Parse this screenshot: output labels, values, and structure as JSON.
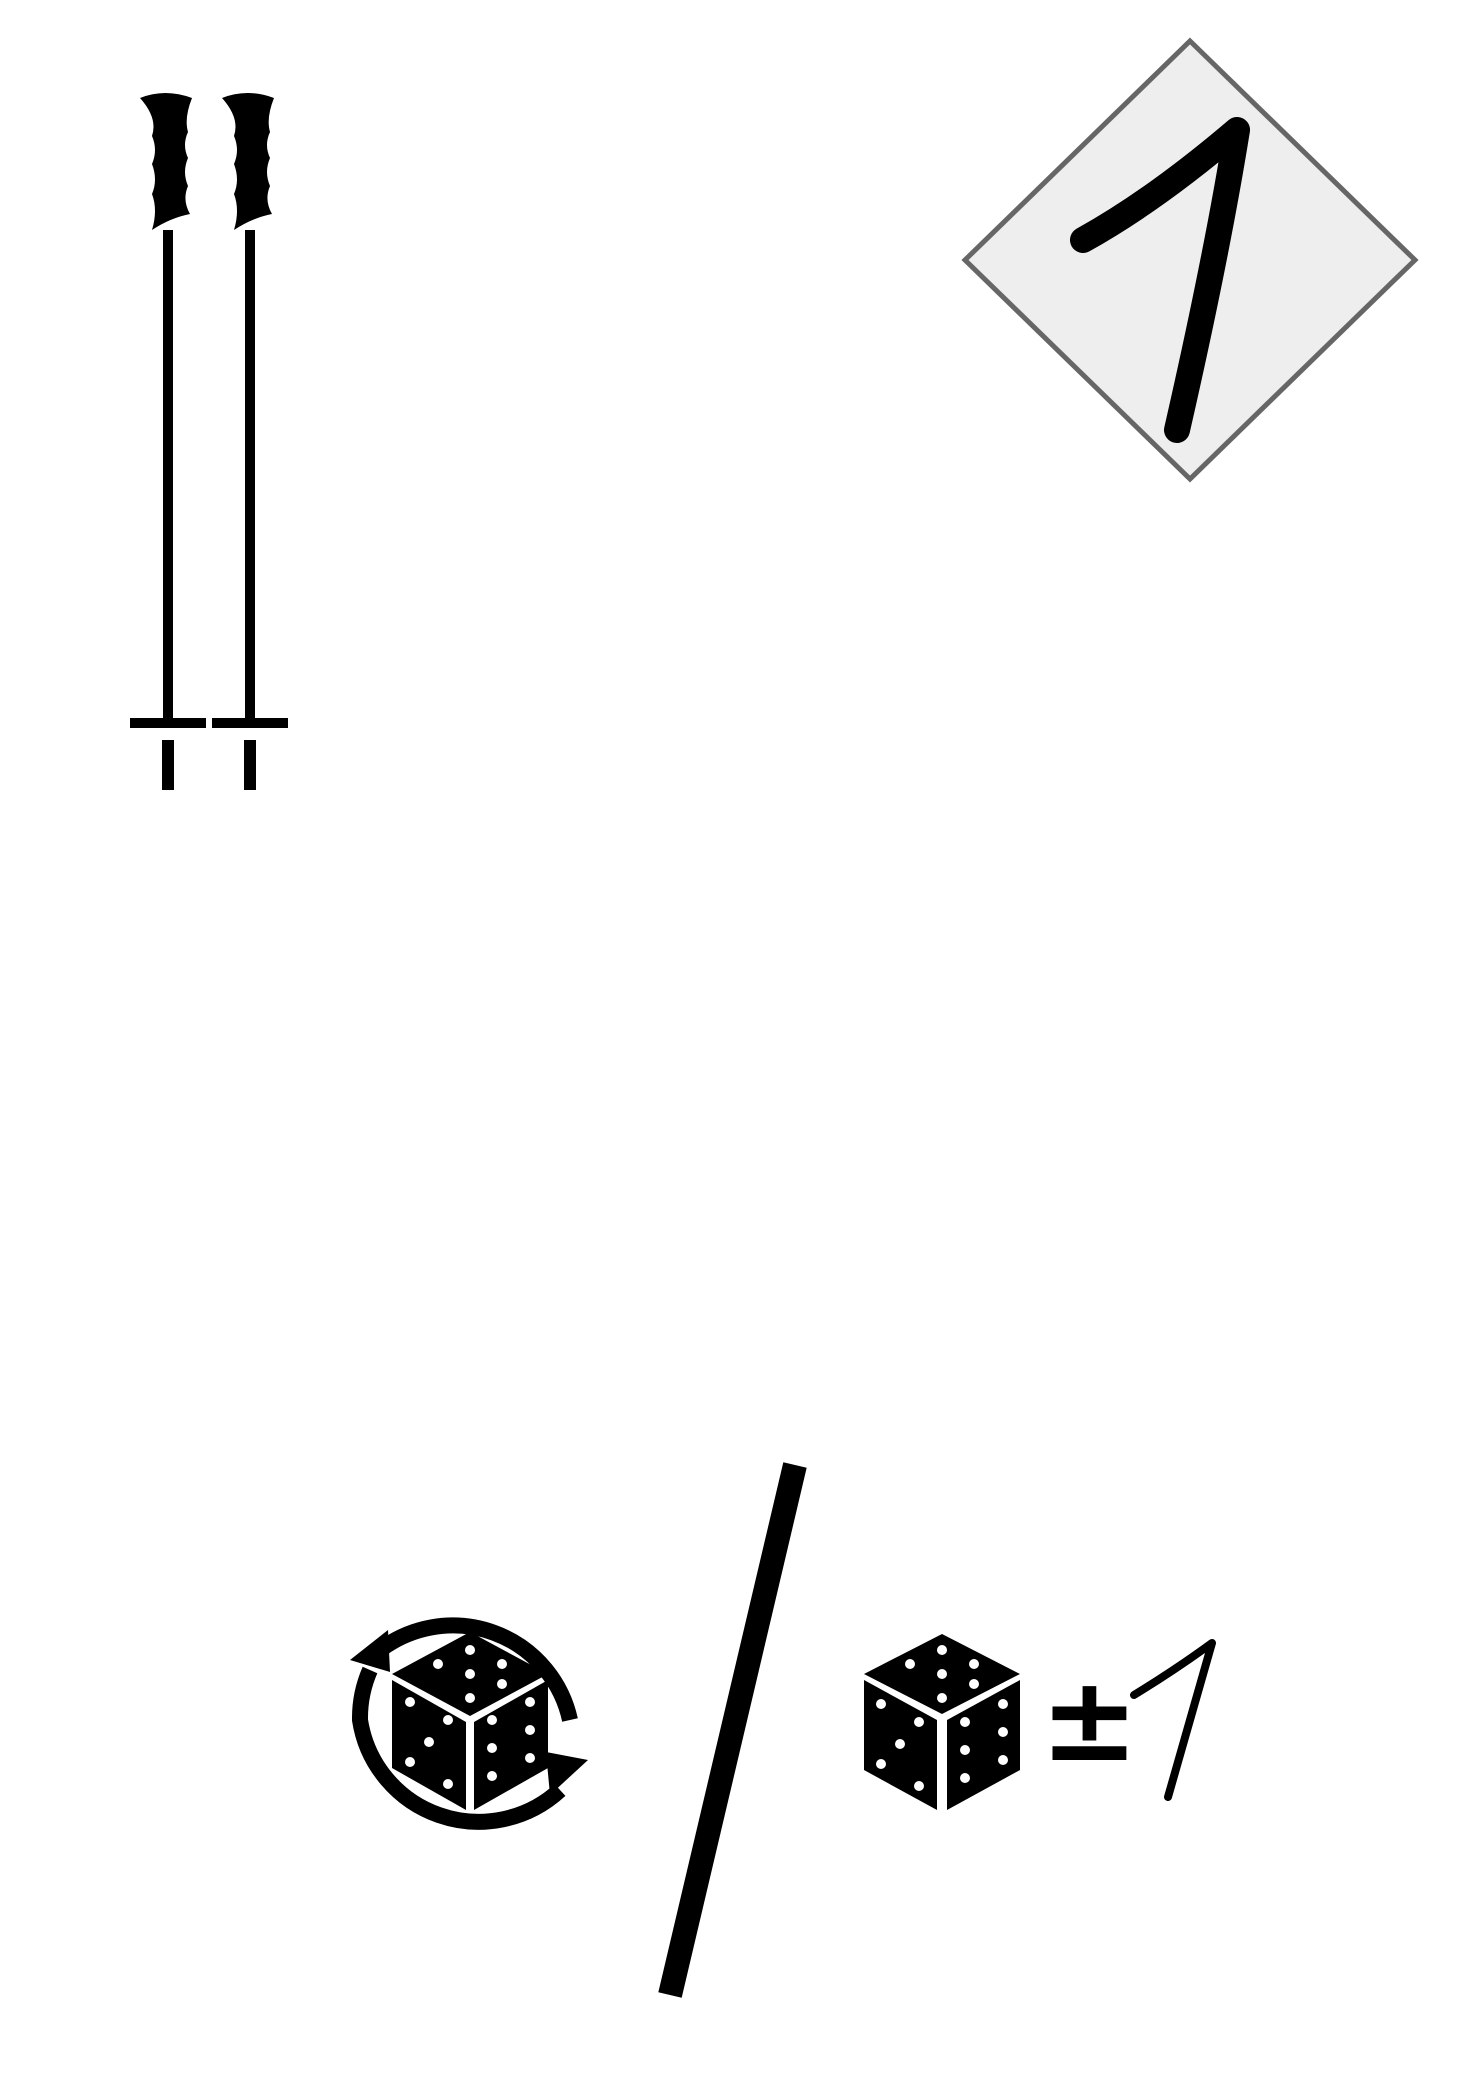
{
  "card": {
    "item": {
      "icon": "ski-poles-icon",
      "count": 2
    },
    "value_badge": {
      "value": "1",
      "fill": "#eeeeee",
      "border": "#666666"
    },
    "abilities": {
      "reroll_icon": "reroll-die-icon",
      "separator_icon": "slash-separator",
      "modify_die_icon": "die-icon",
      "modifier_sign": "±",
      "modifier_value": "1"
    },
    "colors": {
      "ink": "#000000",
      "background": "#ffffff"
    }
  }
}
